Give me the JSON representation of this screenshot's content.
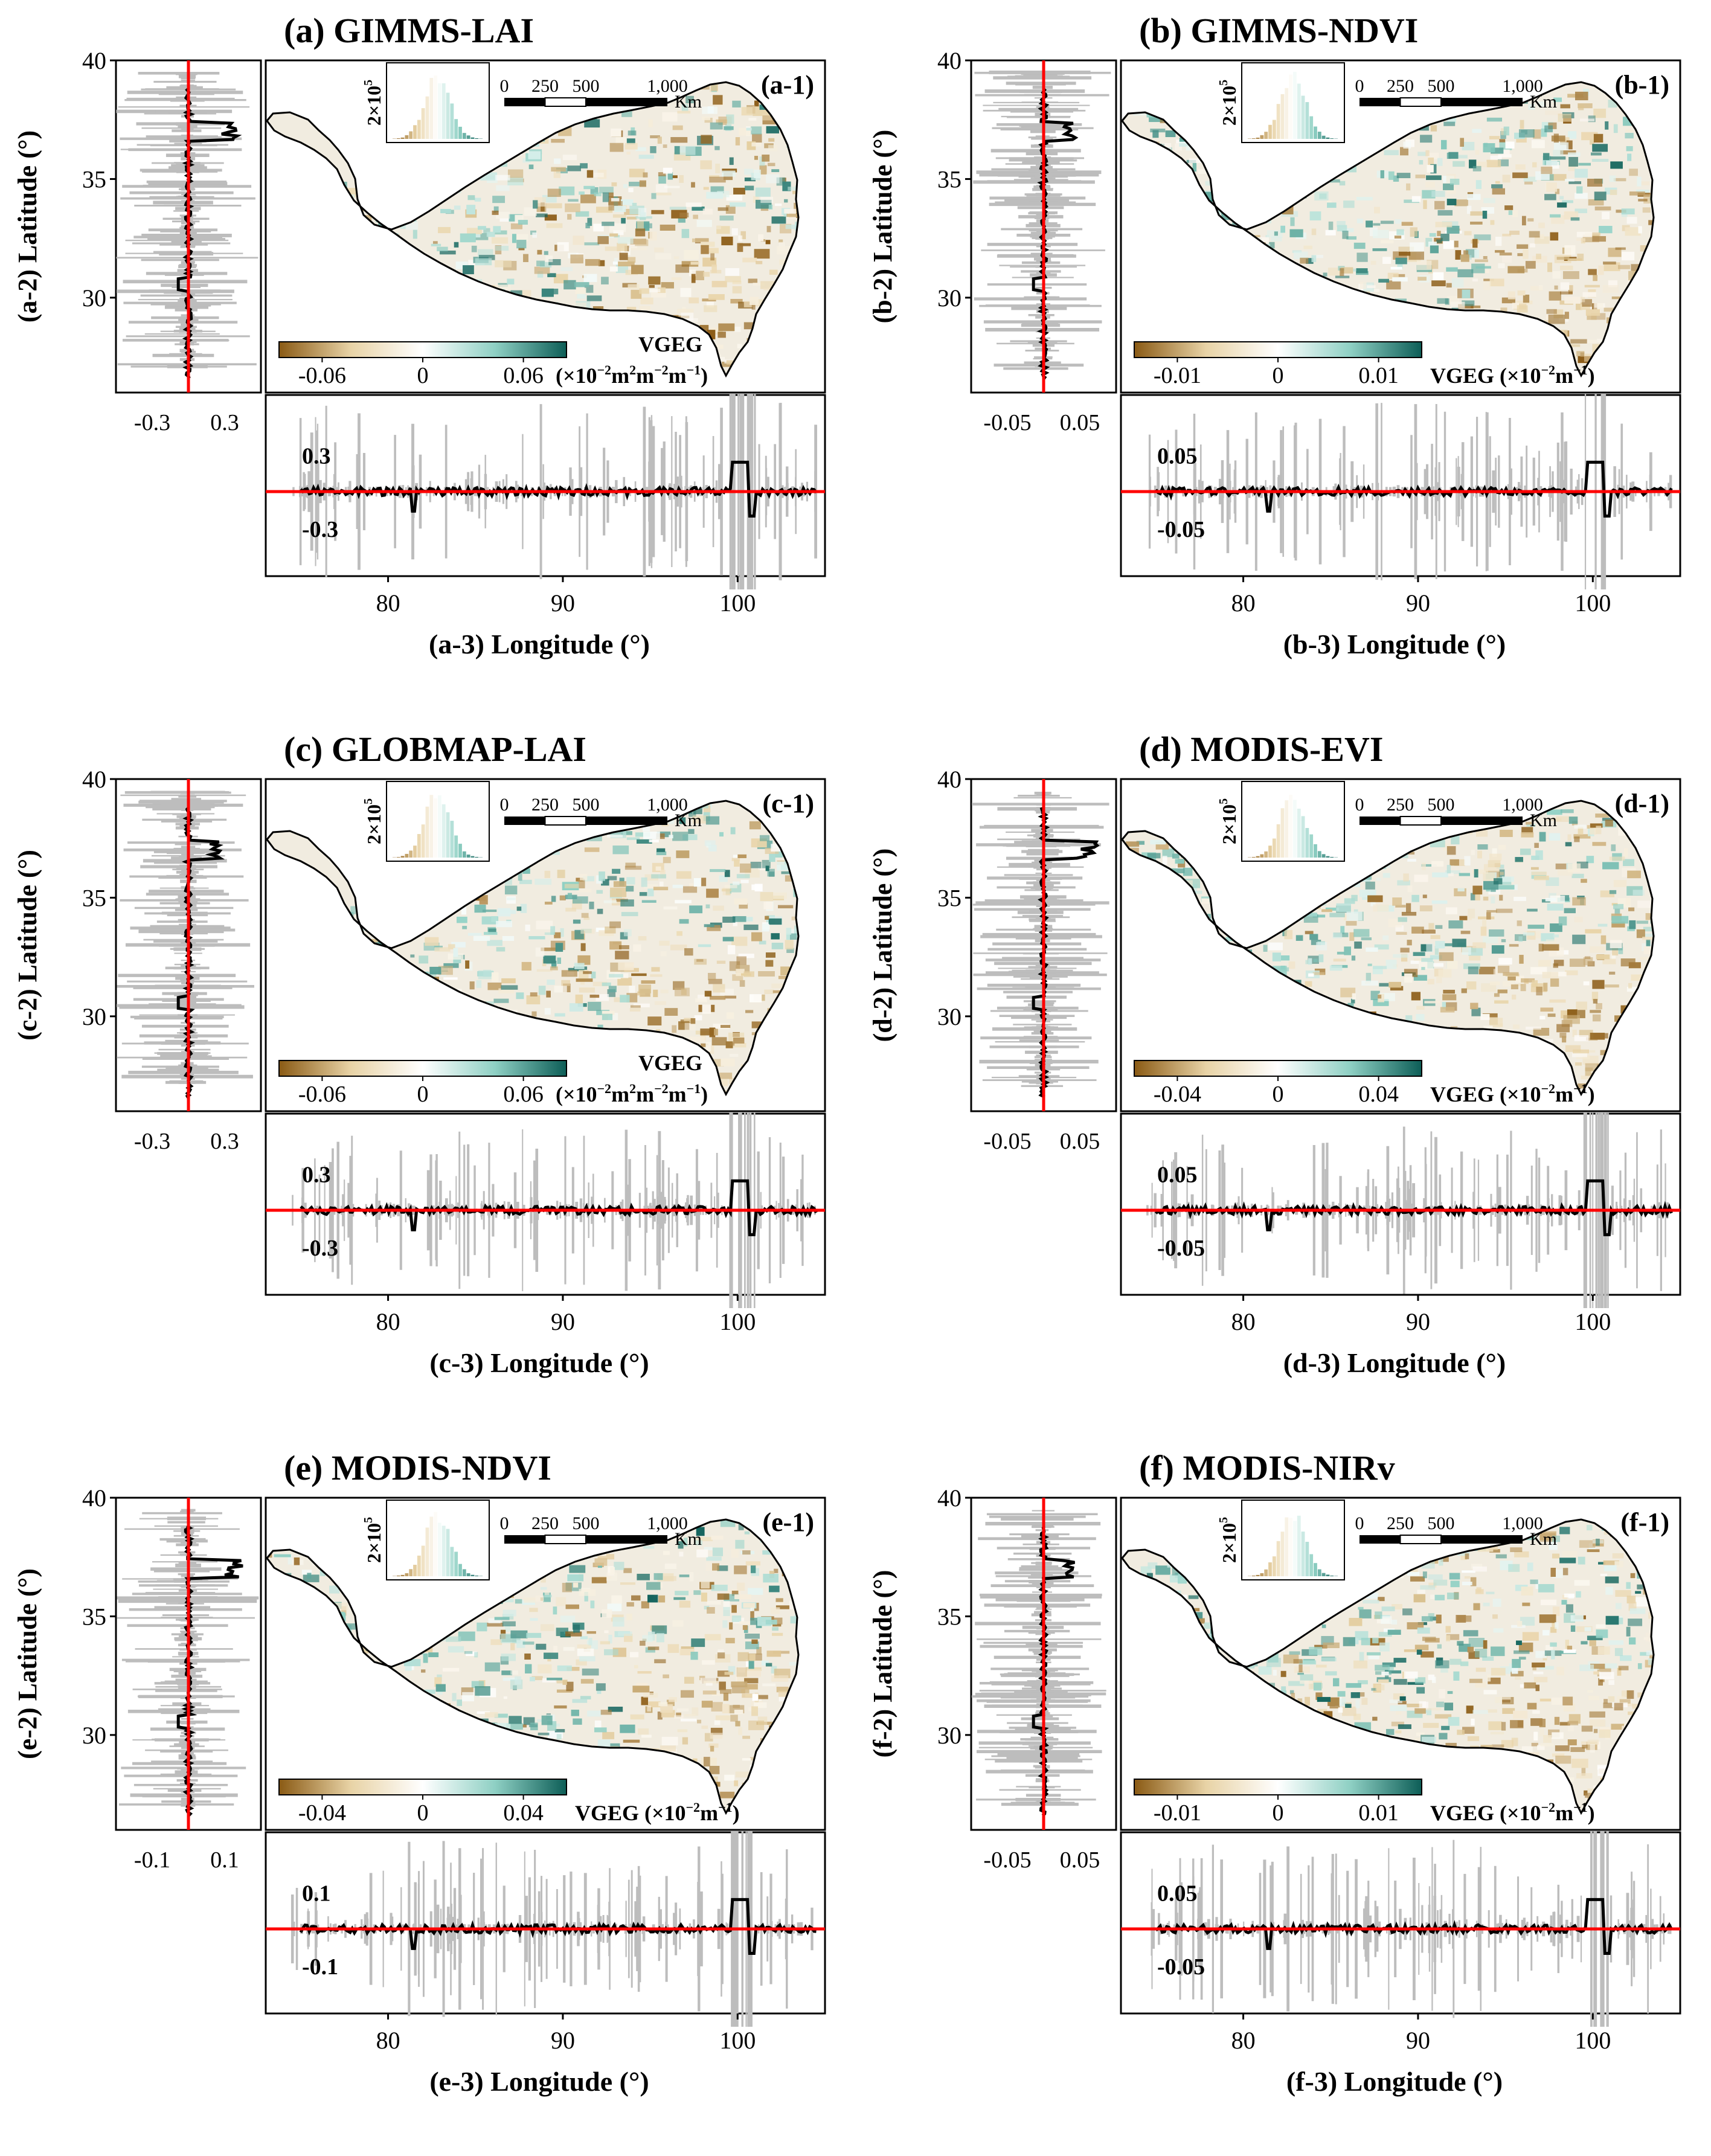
{
  "figure": {
    "colorbar_gradient": {
      "neg": "#8a5a14",
      "mid_neg": "#e8d3a6",
      "zero": "#ffffff",
      "mid_pos": "#8fd0c4",
      "pos": "#0d5e57"
    },
    "line_color": "#ff0000",
    "profile_color": "#000000",
    "band_color": "#bdbdbd",
    "map_land_color": "#f1ece0",
    "map_outline_color": "#000000"
  },
  "chart_data": [
    {
      "type": "map_with_profiles",
      "id": "a",
      "title": "(a) GIMMS-LAI",
      "map_label": "(a-1)",
      "lat_axis_label": "(a-2) Latitude (°)",
      "lon_axis_label": "(a-3) Longitude (°)",
      "lat_ticks": [
        "40",
        "35",
        "30"
      ],
      "lat_range": [
        26,
        40
      ],
      "lon_ticks": [
        "80",
        "90",
        "100"
      ],
      "lon_range": [
        73,
        105
      ],
      "lat_profile_ticks": [
        "-0.3",
        "0.3"
      ],
      "lat_profile_range": [
        -0.6,
        0.6
      ],
      "lon_profile_ticks": [
        "0.3",
        "-0.3"
      ],
      "lon_profile_range": [
        -0.6,
        0.6
      ],
      "colorbar_ticks": [
        "-0.06",
        "0",
        "0.06"
      ],
      "colorbar_unit": "VGEG",
      "colorbar_unit2": "(×10",
      "colorbar_unit_exp": "−2",
      "colorbar_unit_rest": "m",
      "colorbar_unit_rest_exp": "2",
      "colorbar_unit_rest2": "m",
      "colorbar_unit_rest2_exp": "−2",
      "colorbar_unit_rest3": "m",
      "colorbar_unit_rest3_exp": "−1",
      "colorbar_unit_close": ")",
      "histogram_label": "2×10",
      "histogram_label_exp": "5",
      "scalebar_ticks": [
        "0",
        "250",
        "500",
        "1,000"
      ],
      "scalebar_unit": "Km",
      "unit_two_line": true,
      "map_variant": "sparse"
    },
    {
      "type": "map_with_profiles",
      "id": "b",
      "title": "(b) GIMMS-NDVI",
      "map_label": "(b-1)",
      "lat_axis_label": "(b-2) Latitude (°)",
      "lon_axis_label": "(b-3) Longitude (°)",
      "lat_ticks": [
        "40",
        "35",
        "30"
      ],
      "lat_range": [
        26,
        40
      ],
      "lon_ticks": [
        "80",
        "90",
        "100"
      ],
      "lon_range": [
        73,
        105
      ],
      "lat_profile_ticks": [
        "-0.05",
        "0.05"
      ],
      "lat_profile_range": [
        -0.1,
        0.1
      ],
      "lon_profile_ticks": [
        "0.05",
        "-0.05"
      ],
      "lon_profile_range": [
        -0.1,
        0.1
      ],
      "colorbar_ticks": [
        "-0.01",
        "0",
        "0.01"
      ],
      "colorbar_unit": "VGEG (×10",
      "colorbar_unit_exp": "−2",
      "colorbar_unit_rest": "m",
      "colorbar_unit_rest_exp": "−1",
      "colorbar_unit_close": ")",
      "histogram_label": "2×10",
      "histogram_label_exp": "5",
      "scalebar_ticks": [
        "0",
        "250",
        "500",
        "1,000"
      ],
      "scalebar_unit": "Km",
      "unit_two_line": false,
      "map_variant": "full"
    },
    {
      "type": "map_with_profiles",
      "id": "c",
      "title": "(c) GLOBMAP-LAI",
      "map_label": "(c-1)",
      "lat_axis_label": "(c-2) Latitude (°)",
      "lon_axis_label": "(c-3) Longitude (°)",
      "lat_ticks": [
        "40",
        "35",
        "30"
      ],
      "lat_range": [
        26,
        40
      ],
      "lon_ticks": [
        "80",
        "90",
        "100"
      ],
      "lon_range": [
        73,
        105
      ],
      "lat_profile_ticks": [
        "-0.3",
        "0.3"
      ],
      "lat_profile_range": [
        -0.6,
        0.6
      ],
      "lon_profile_ticks": [
        "0.3",
        "-0.3"
      ],
      "lon_profile_range": [
        -0.6,
        0.6
      ],
      "colorbar_ticks": [
        "-0.06",
        "0",
        "0.06"
      ],
      "colorbar_unit": "VGEG",
      "colorbar_unit2": "(×10",
      "colorbar_unit_exp": "−2",
      "colorbar_unit_rest": "m",
      "colorbar_unit_rest_exp": "2",
      "colorbar_unit_rest2": "m",
      "colorbar_unit_rest2_exp": "−2",
      "colorbar_unit_rest3": "m",
      "colorbar_unit_rest3_exp": "−1",
      "colorbar_unit_close": ")",
      "histogram_label": "2×10",
      "histogram_label_exp": "5",
      "scalebar_ticks": [
        "0",
        "250",
        "500",
        "1,000"
      ],
      "scalebar_unit": "Km",
      "unit_two_line": true,
      "map_variant": "sparse"
    },
    {
      "type": "map_with_profiles",
      "id": "d",
      "title": "(d) MODIS-EVI",
      "map_label": "(d-1)",
      "lat_axis_label": "(d-2) Latitude (°)",
      "lon_axis_label": "(d-3) Longitude (°)",
      "lat_ticks": [
        "40",
        "35",
        "30"
      ],
      "lat_range": [
        26,
        40
      ],
      "lon_ticks": [
        "80",
        "90",
        "100"
      ],
      "lon_range": [
        73,
        105
      ],
      "lat_profile_ticks": [
        "-0.05",
        "0.05"
      ],
      "lat_profile_range": [
        -0.1,
        0.1
      ],
      "lon_profile_ticks": [
        "0.05",
        "-0.05"
      ],
      "lon_profile_range": [
        -0.1,
        0.1
      ],
      "colorbar_ticks": [
        "-0.04",
        "0",
        "0.04"
      ],
      "colorbar_unit": "VGEG (×10",
      "colorbar_unit_exp": "−2",
      "colorbar_unit_rest": "m",
      "colorbar_unit_rest_exp": "−1",
      "colorbar_unit_close": ")",
      "histogram_label": "2×10",
      "histogram_label_exp": "5",
      "scalebar_ticks": [
        "0",
        "250",
        "500",
        "1,000"
      ],
      "scalebar_unit": "Km",
      "unit_two_line": false,
      "map_variant": "full"
    },
    {
      "type": "map_with_profiles",
      "id": "e",
      "title": "(e) MODIS-NDVI",
      "map_label": "(e-1)",
      "lat_axis_label": "(e-2) Latitude (°)",
      "lon_axis_label": "(e-3) Longitude (°)",
      "lat_ticks": [
        "40",
        "35",
        "30"
      ],
      "lat_range": [
        26,
        40
      ],
      "lon_ticks": [
        "80",
        "90",
        "100"
      ],
      "lon_range": [
        73,
        105
      ],
      "lat_profile_ticks": [
        "-0.1",
        "0.1"
      ],
      "lat_profile_range": [
        -0.2,
        0.2
      ],
      "lon_profile_ticks": [
        "0.1",
        "-0.1"
      ],
      "lon_profile_range": [
        -0.2,
        0.2
      ],
      "colorbar_ticks": [
        "-0.04",
        "0",
        "0.04"
      ],
      "colorbar_unit": "VGEG (×10",
      "colorbar_unit_exp": "−2",
      "colorbar_unit_rest": "m",
      "colorbar_unit_rest_exp": "−1",
      "colorbar_unit_close": ")",
      "histogram_label": "2×10",
      "histogram_label_exp": "5",
      "scalebar_ticks": [
        "0",
        "250",
        "500",
        "1,000"
      ],
      "scalebar_unit": "Km",
      "unit_two_line": false,
      "map_variant": "full"
    },
    {
      "type": "map_with_profiles",
      "id": "f",
      "title": "(f) MODIS-NIRv",
      "map_label": "(f-1)",
      "lat_axis_label": "(f-2) Latitude (°)",
      "lon_axis_label": "(f-3) Longitude (°)",
      "lat_ticks": [
        "40",
        "35",
        "30"
      ],
      "lat_range": [
        26,
        40
      ],
      "lon_ticks": [
        "80",
        "90",
        "100"
      ],
      "lon_range": [
        73,
        105
      ],
      "lat_profile_ticks": [
        "-0.05",
        "0.05"
      ],
      "lat_profile_range": [
        -0.1,
        0.1
      ],
      "lon_profile_ticks": [
        "0.05",
        "-0.05"
      ],
      "lon_profile_range": [
        -0.1,
        0.1
      ],
      "colorbar_ticks": [
        "-0.01",
        "0",
        "0.01"
      ],
      "colorbar_unit": "VGEG (×10",
      "colorbar_unit_exp": "−2",
      "colorbar_unit_rest": "m",
      "colorbar_unit_rest_exp": "−1",
      "colorbar_unit_close": ")",
      "histogram_label": "2×10",
      "histogram_label_exp": "5",
      "scalebar_ticks": [
        "0",
        "250",
        "500",
        "1,000"
      ],
      "scalebar_unit": "Km",
      "unit_two_line": false,
      "map_variant": "full"
    }
  ]
}
